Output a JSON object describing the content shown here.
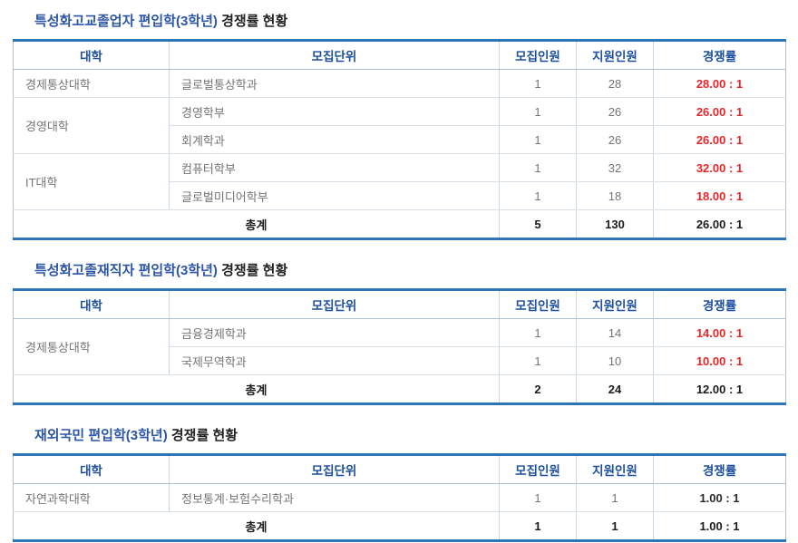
{
  "colors": {
    "title_accent_blue": "#2d55a8",
    "header_text_blue": "#1d4f9e",
    "thick_border_blue": "#2e75b6",
    "rate_red": "#e8262a",
    "data_text_gray": "#757578"
  },
  "columns": [
    "대학",
    "모집단위",
    "모집인원",
    "지원인원",
    "경쟁률"
  ],
  "tables": [
    {
      "title_accent": "특성화고교졸업자 편입학(3학년)",
      "title_rest": "경쟁률 현황",
      "groups": [
        {
          "college": "경제통상대학",
          "depts": [
            {
              "name": "글로벌통상학과",
              "quota": "1",
              "applicants": "28",
              "rate": "28.00 : 1",
              "red": true
            }
          ]
        },
        {
          "college": "경영대학",
          "depts": [
            {
              "name": "경영학부",
              "quota": "1",
              "applicants": "26",
              "rate": "26.00 : 1",
              "red": true
            },
            {
              "name": "회계학과",
              "quota": "1",
              "applicants": "26",
              "rate": "26.00 : 1",
              "red": true
            }
          ]
        },
        {
          "college": "IT대학",
          "depts": [
            {
              "name": "컴퓨터학부",
              "quota": "1",
              "applicants": "32",
              "rate": "32.00 : 1",
              "red": true
            },
            {
              "name": "글로벌미디어학부",
              "quota": "1",
              "applicants": "18",
              "rate": "18.00 : 1",
              "red": true
            }
          ]
        }
      ],
      "total": {
        "label": "총계",
        "quota": "5",
        "applicants": "130",
        "rate": "26.00 : 1"
      }
    },
    {
      "title_accent": "특성화고졸재직자 편입학(3학년)",
      "title_rest": "경쟁률 현황",
      "groups": [
        {
          "college": "경제통상대학",
          "depts": [
            {
              "name": "금융경제학과",
              "quota": "1",
              "applicants": "14",
              "rate": "14.00 : 1",
              "red": true
            },
            {
              "name": "국제무역학과",
              "quota": "1",
              "applicants": "10",
              "rate": "10.00 : 1",
              "red": true
            }
          ]
        }
      ],
      "total": {
        "label": "총계",
        "quota": "2",
        "applicants": "24",
        "rate": "12.00 : 1"
      }
    },
    {
      "title_accent": "재외국민 편입학(3학년)",
      "title_rest": "경쟁률 현황",
      "groups": [
        {
          "college": "자연과학대학",
          "depts": [
            {
              "name": "정보통계·보험수리학과",
              "quota": "1",
              "applicants": "1",
              "rate": "1.00 : 1",
              "red": false
            }
          ]
        }
      ],
      "total": {
        "label": "총계",
        "quota": "1",
        "applicants": "1",
        "rate": "1.00 : 1"
      }
    }
  ]
}
